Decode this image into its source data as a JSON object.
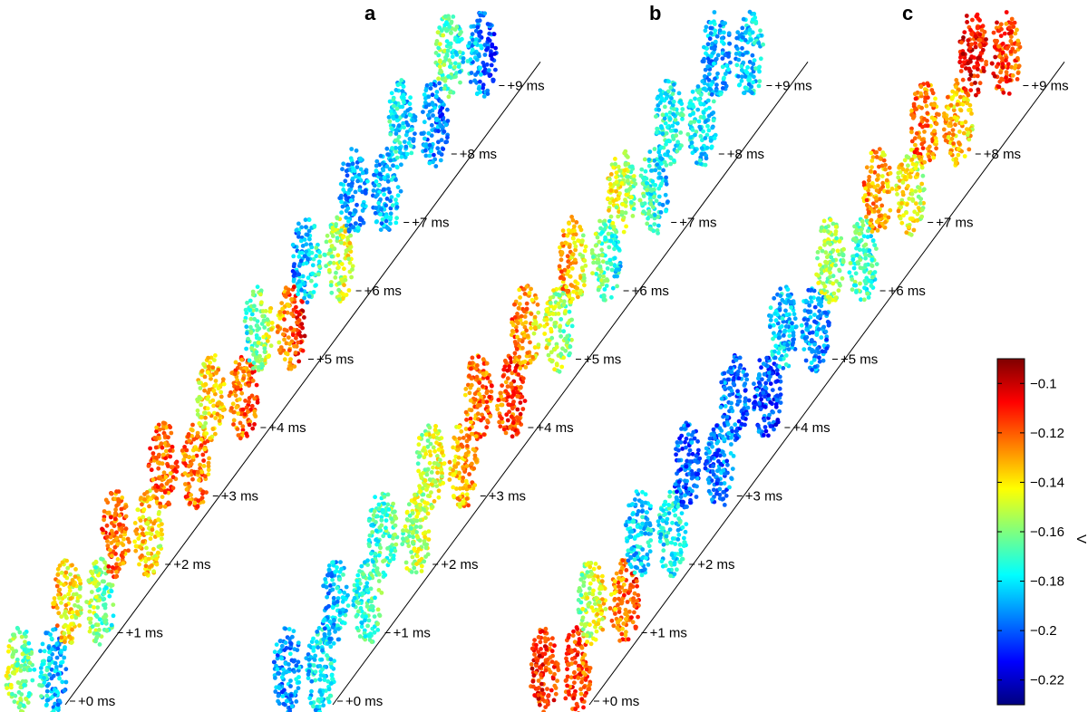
{
  "figure": {
    "panels": [
      "a",
      "b",
      "c"
    ],
    "time_unit": "ms"
  },
  "colormap": [
    "#00007f",
    "#0000ff",
    "#007fff",
    "#00ffff",
    "#7fff7f",
    "#ffff00",
    "#ff7f00",
    "#ff0000",
    "#7f0000"
  ],
  "chart_data": {
    "type": "heatmap",
    "description_units": "V",
    "time_ticks": [
      "+0 ms",
      "+1 ms",
      "+2 ms",
      "+3 ms",
      "+4 ms",
      "+5 ms",
      "+6 ms",
      "+7 ms",
      "+8 ms",
      "+9 ms"
    ],
    "colorbar": {
      "label": "V",
      "range": [
        -0.23,
        -0.09
      ],
      "ticks": [
        -0.1,
        -0.12,
        -0.14,
        -0.16,
        -0.18,
        -0.2,
        -0.22
      ],
      "tick_labels": [
        "−0.1",
        "−0.12",
        "−0.14",
        "−0.16",
        "−0.18",
        "−0.2",
        "−0.22"
      ]
    },
    "panels": [
      {
        "label": "a",
        "frames": [
          {
            "t": 0,
            "left": -0.15,
            "right": -0.195
          },
          {
            "t": 1,
            "left": -0.13,
            "right": -0.17
          },
          {
            "t": 2,
            "left": -0.115,
            "right": -0.145
          },
          {
            "t": 3,
            "left": -0.12,
            "right": -0.125
          },
          {
            "t": 4,
            "left": -0.145,
            "right": -0.115
          },
          {
            "t": 5,
            "left": -0.175,
            "right": -0.105
          },
          {
            "t": 6,
            "left": -0.195,
            "right": -0.14
          },
          {
            "t": 7,
            "left": -0.19,
            "right": -0.185
          },
          {
            "t": 8,
            "left": -0.175,
            "right": -0.2
          },
          {
            "t": 9,
            "left": -0.155,
            "right": -0.205
          }
        ]
      },
      {
        "label": "b",
        "frames": [
          {
            "t": 0,
            "left": -0.195,
            "right": -0.175
          },
          {
            "t": 1,
            "left": -0.19,
            "right": -0.165
          },
          {
            "t": 2,
            "left": -0.175,
            "right": -0.145
          },
          {
            "t": 3,
            "left": -0.155,
            "right": -0.125
          },
          {
            "t": 4,
            "left": -0.125,
            "right": -0.115
          },
          {
            "t": 5,
            "left": -0.12,
            "right": -0.165
          },
          {
            "t": 6,
            "left": -0.125,
            "right": -0.18
          },
          {
            "t": 7,
            "left": -0.14,
            "right": -0.185
          },
          {
            "t": 8,
            "left": -0.175,
            "right": -0.18
          },
          {
            "t": 9,
            "left": -0.19,
            "right": -0.18
          }
        ]
      },
      {
        "label": "c",
        "frames": [
          {
            "t": 0,
            "left": -0.11,
            "right": -0.12
          },
          {
            "t": 1,
            "left": -0.16,
            "right": -0.11
          },
          {
            "t": 2,
            "left": -0.185,
            "right": -0.175
          },
          {
            "t": 3,
            "left": -0.2,
            "right": -0.195
          },
          {
            "t": 4,
            "left": -0.195,
            "right": -0.205
          },
          {
            "t": 5,
            "left": -0.18,
            "right": -0.195
          },
          {
            "t": 6,
            "left": -0.15,
            "right": -0.175
          },
          {
            "t": 7,
            "left": -0.125,
            "right": -0.15
          },
          {
            "t": 8,
            "left": -0.12,
            "right": -0.14
          },
          {
            "t": 9,
            "left": -0.105,
            "right": -0.12
          }
        ]
      }
    ]
  }
}
